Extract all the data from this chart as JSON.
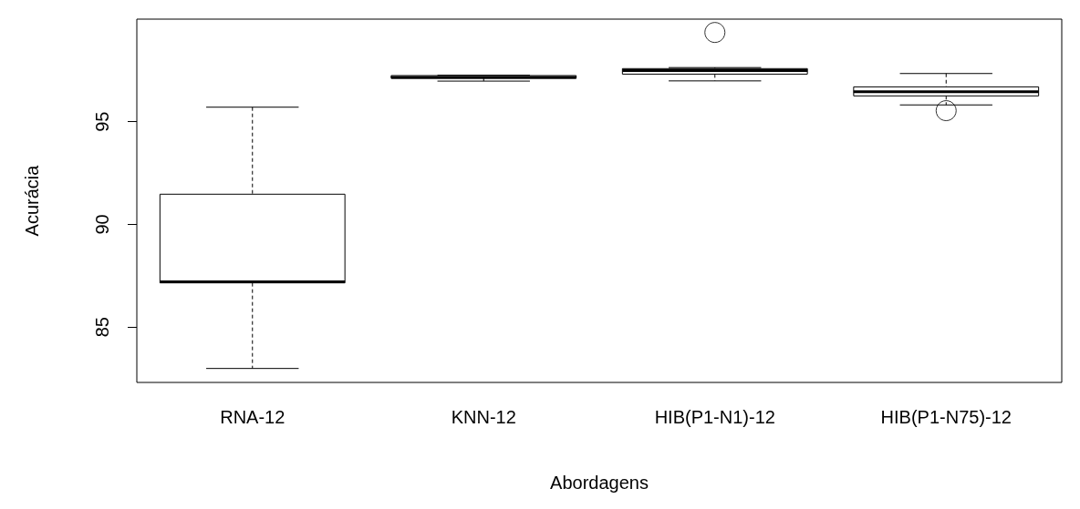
{
  "chart_data": {
    "type": "box",
    "xlabel": "Abordagens",
    "ylabel": "Acurácia",
    "categories": [
      "RNA-12",
      "KNN-12",
      "HIB(P1-N1)-12",
      "HIB(P1-N75)-12"
    ],
    "boxes": [
      {
        "low": 82.98,
        "q1": 87.15,
        "median": 87.2,
        "q3": 91.47,
        "high": 95.71
      },
      {
        "low": 96.98,
        "q1": 97.12,
        "median": 97.16,
        "q3": 97.25,
        "high": 97.27
      },
      {
        "low": 96.99,
        "q1": 97.32,
        "median": 97.49,
        "q3": 97.59,
        "high": 97.64,
        "outliers": [
          99.35
        ]
      },
      {
        "low": 95.82,
        "q1": 96.26,
        "median": 96.46,
        "q3": 96.7,
        "high": 97.35,
        "outliers": [
          95.54
        ]
      }
    ],
    "ylim": [
      82.3,
      100
    ],
    "yticks": [
      85,
      90,
      95
    ],
    "grid": false
  }
}
